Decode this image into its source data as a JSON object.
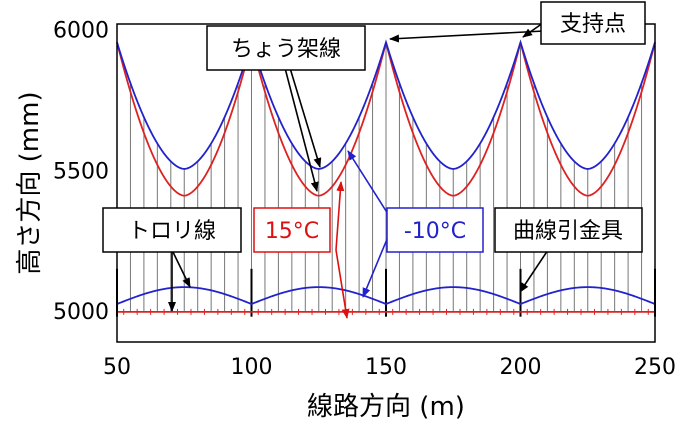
{
  "chart_data": {
    "type": "line",
    "xlabel": "線路方向 (m)",
    "ylabel": "高さ方向 (mm)",
    "xlim": [
      50,
      250
    ],
    "ylim": [
      4890,
      6020
    ],
    "xticks": [
      50,
      100,
      150,
      200,
      250
    ],
    "yticks": [
      5000,
      5500,
      6000
    ],
    "grid": false,
    "supports_x": [
      50,
      100,
      150,
      200,
      250
    ],
    "dropper_spacing_m": 5,
    "series": [
      {
        "name": "15°C",
        "color": "#dd2222",
        "role": "ちょう架線",
        "support_height": 5955,
        "sag_lowest": 5410,
        "span_m": 50
      },
      {
        "name": "-10°C",
        "color": "#2222cc",
        "role": "ちょう架線",
        "support_height": 5955,
        "sag_lowest": 5505,
        "span_m": 50
      },
      {
        "name": "15°C",
        "color": "#dd2222",
        "role": "トロリ線",
        "level": 4997,
        "small_sag": 6
      },
      {
        "name": "-10°C",
        "color": "#2222cc",
        "role": "トロリ線",
        "at_support": 5025,
        "mid_span_peak": 5085
      }
    ]
  },
  "annotations": {
    "catenary_label": "ちょう架線",
    "support_label": "支持点",
    "trolley_label": "トロリ線",
    "temp_hot": "15°C",
    "temp_cold": "-10°C",
    "pull_off_label": "曲線引金具"
  }
}
